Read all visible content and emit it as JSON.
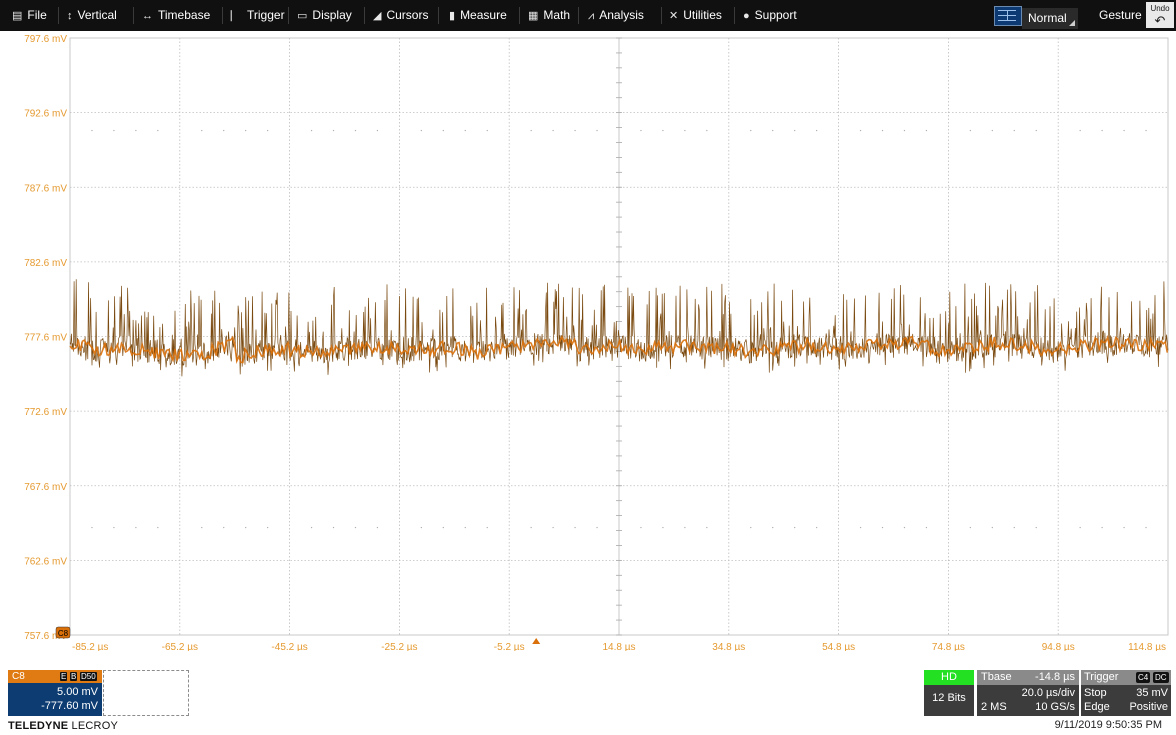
{
  "menu": {
    "items": [
      {
        "key": "file",
        "label": "File",
        "icon": "document-icon",
        "glyph": "▤"
      },
      {
        "key": "vertical",
        "label": "Vertical",
        "icon": "vertical-arrow-icon",
        "glyph": "↕"
      },
      {
        "key": "timebase",
        "label": "Timebase",
        "icon": "horizontal-arrow-icon",
        "glyph": "↔"
      },
      {
        "key": "trigger",
        "label": "Trigger",
        "icon": "trigger-icon",
        "glyph": "⎸"
      },
      {
        "key": "display",
        "label": "Display",
        "icon": "display-icon",
        "glyph": "▭"
      },
      {
        "key": "cursors",
        "label": "Cursors",
        "icon": "cursor-icon",
        "glyph": "◢"
      },
      {
        "key": "measure",
        "label": "Measure",
        "icon": "measure-icon",
        "glyph": "▮"
      },
      {
        "key": "math",
        "label": "Math",
        "icon": "calculator-icon",
        "glyph": "▦"
      },
      {
        "key": "analysis",
        "label": "Analysis",
        "icon": "analysis-chart-icon",
        "glyph": "⩘"
      },
      {
        "key": "utilities",
        "label": "Utilities",
        "icon": "tools-icon",
        "glyph": "✕"
      },
      {
        "key": "support",
        "label": "Support",
        "icon": "info-icon",
        "glyph": "●"
      }
    ],
    "mode": "Normal",
    "gesture": "Gesture",
    "undo": "Undo",
    "undo_icon": "undo-arrow-icon",
    "grid_icon": "grid-layout-icon"
  },
  "colors": {
    "trace": "#d9700a",
    "trace_dark": "#7a4a10",
    "axis_label": "#e59a30",
    "grid": "#bdbdbd",
    "menu_bg": "#101010",
    "channel_panel": "#0c3c72",
    "hd_green": "#23e023"
  },
  "chart_data": {
    "type": "line",
    "title": "",
    "xlabel": "",
    "ylabel": "",
    "x_ticks": [
      "-85.2 µs",
      "-65.2 µs",
      "-45.2 µs",
      "-25.2 µs",
      "-5.2 µs",
      "14.8 µs",
      "34.8 µs",
      "54.8 µs",
      "74.8 µs",
      "94.8 µs",
      "114.8 µs"
    ],
    "y_ticks": [
      "797.6 mV",
      "792.6 mV",
      "787.6 mV",
      "782.6 mV",
      "777.6 mV",
      "772.6 mV",
      "767.6 mV",
      "762.6 mV",
      "757.6 mV"
    ],
    "xlim": [
      -85.2,
      114.8
    ],
    "ylim": [
      757.6,
      797.6
    ],
    "x_unit": "µs",
    "y_unit": "mV",
    "grid": true,
    "series": [
      {
        "channel": "C8",
        "x": [
          -85.2,
          -80.2,
          -75.2,
          -70.2,
          -65.2,
          -60.2,
          -55.2,
          -56.2,
          -51.2,
          -46.2,
          -41.2,
          -36.2,
          -31.2,
          -26.2,
          -21.2,
          -16.2,
          -11.2,
          -6.2,
          -1.2,
          3.8,
          8.8,
          13.8,
          18.8,
          23.8,
          28.8,
          33.8,
          38.8,
          43.8,
          48.8,
          53.8,
          58.8,
          63.8,
          68.8,
          73.8,
          78.8,
          83.8,
          88.8,
          93.8,
          98.8,
          103.8,
          108.8,
          113.8,
          114.8
        ],
        "y": [
          777.2,
          776.7,
          776.9,
          776.6,
          776.3,
          776.5,
          777.3,
          776.0,
          776.6,
          776.8,
          776.5,
          776.7,
          776.9,
          776.8,
          776.7,
          776.9,
          776.5,
          776.8,
          777.1,
          777.2,
          776.8,
          777.0,
          776.7,
          776.9,
          777.0,
          776.8,
          776.6,
          776.8,
          777.0,
          776.8,
          776.9,
          777.1,
          777.2,
          776.6,
          776.8,
          777.2,
          777.0,
          776.6,
          776.9,
          777.2,
          777.0,
          777.0,
          776.9
        ],
        "noise_band_mV": [
          -1.6,
          4.4
        ]
      }
    ],
    "trigger_time_label": "-5.2 µs"
  },
  "channel": {
    "name": "C8",
    "badges": [
      "E",
      "B",
      "D50"
    ],
    "scale": "5.00 mV",
    "offset": "-777.60 mV",
    "marker": "C8"
  },
  "acquisition": {
    "hd": "HD",
    "bits": "12 Bits"
  },
  "timebase": {
    "label": "Tbase",
    "delay": "-14.8 µs",
    "per_div": "20.0 µs/div",
    "samples": "2 MS",
    "rate": "10 GS/s"
  },
  "trigger": {
    "label": "Trigger",
    "badges": [
      "C4",
      "DC"
    ],
    "mode": "Stop",
    "level": "35 mV",
    "type": "Edge",
    "slope": "Positive"
  },
  "footer": {
    "brand_bold": "TELEDYNE",
    "brand_light": "LECROY",
    "timestamp": "9/11/2019 9:50:35 PM"
  }
}
